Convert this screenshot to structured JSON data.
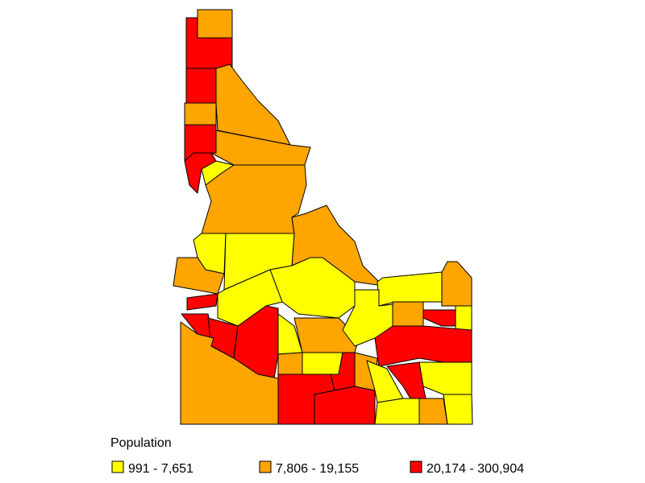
{
  "legend": {
    "title": "Population",
    "classes": [
      {
        "label": "991 - 7,651",
        "color": "#ffff00"
      },
      {
        "label": "7,806 - 19,155",
        "color": "#ffa500"
      },
      {
        "label": "20,174 - 300,904",
        "color": "#ff0000"
      }
    ]
  }
}
